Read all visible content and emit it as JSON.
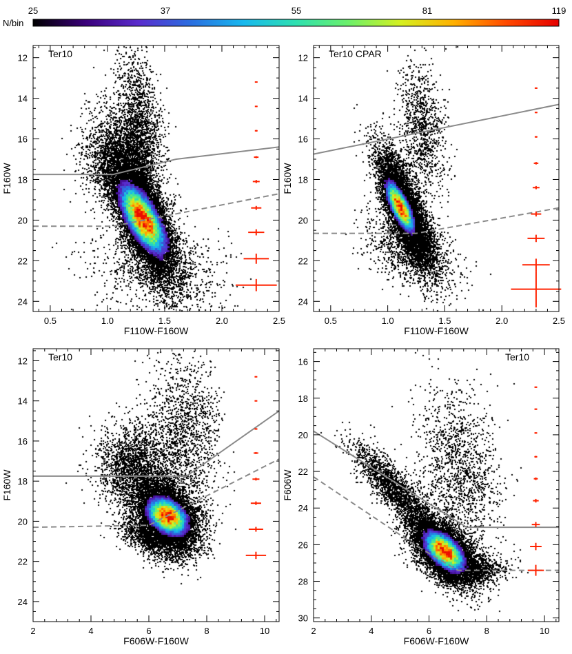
{
  "colorbar": {
    "label": "N/bin",
    "ticks": [
      "25",
      "37",
      "55",
      "81",
      "119"
    ],
    "stops": [
      "#000000",
      "#3a007a",
      "#5a2ccd",
      "#2a6ee0",
      "#18b8ee",
      "#2ee0b0",
      "#6cf06a",
      "#d6f020",
      "#ffb000",
      "#ff4a00",
      "#e60000"
    ]
  },
  "colors": {
    "points": "#000000",
    "boundary": "#8a8a8a",
    "errorbars": "#ff2200"
  },
  "chart_data": [
    {
      "type": "scatter",
      "title": "Ter10",
      "xlabel": "F110W-F160W",
      "ylabel": "F160W",
      "xlim": [
        0.35,
        2.5
      ],
      "ylim": [
        24.5,
        11.4
      ],
      "xticks": [
        0.5,
        1.0,
        1.5,
        2.0,
        2.5
      ],
      "xtick_labels": [
        "0.5",
        "1.0",
        "1.5",
        "2.0",
        "2.5"
      ],
      "yticks": [
        12,
        14,
        16,
        18,
        20,
        22,
        24
      ],
      "ytick_labels": [
        "12",
        "14",
        "16",
        "18",
        "20",
        "22",
        "24"
      ],
      "solid_line": [
        [
          0.35,
          17.75
        ],
        [
          1.05,
          17.75
        ],
        [
          1.6,
          17.0
        ],
        [
          2.5,
          16.4
        ]
      ],
      "dashed_line": [
        [
          0.35,
          20.3
        ],
        [
          1.05,
          20.3
        ],
        [
          2.5,
          18.7
        ]
      ],
      "errorbars": {
        "x": 2.3,
        "y": [
          13.2,
          14.4,
          15.6,
          16.9,
          18.1,
          19.4,
          20.6,
          21.9,
          23.2
        ],
        "xerr": [
          0.005,
          0.007,
          0.01,
          0.02,
          0.03,
          0.045,
          0.07,
          0.11,
          0.18
        ],
        "yerr": [
          0.02,
          0.03,
          0.04,
          0.05,
          0.08,
          0.1,
          0.15,
          0.25,
          0.3
        ]
      },
      "density": {
        "peaks": [
          {
            "x": 1.3,
            "y": 19.8,
            "sx": 0.14,
            "sy": 1.5,
            "rho": 0.68,
            "w": 0.75
          },
          {
            "x": 1.28,
            "y": 15.5,
            "sx": 0.1,
            "sy": 2.0,
            "rho": 0.3,
            "w": 0.1
          },
          {
            "x": 1.08,
            "y": 16.8,
            "sx": 0.15,
            "sy": 1.2,
            "rho": 0.0,
            "w": 0.1
          },
          {
            "x": 1.45,
            "y": 22.5,
            "sx": 0.3,
            "sy": 1.0,
            "rho": 0.2,
            "w": 0.05
          }
        ],
        "points": 16000,
        "core": {
          "x": 1.3,
          "y": 19.9,
          "sx": 0.13,
          "sy": 1.1,
          "rho": 0.68
        }
      },
      "yaxis_label_side": "left"
    },
    {
      "type": "scatter",
      "title": "Ter10 CPAR",
      "xlabel": "F110W-F160W",
      "ylabel": "F160W",
      "xlim": [
        0.35,
        2.5
      ],
      "ylim": [
        24.5,
        11.4
      ],
      "xticks": [
        0.5,
        1.0,
        1.5,
        2.0,
        2.5
      ],
      "xtick_labels": [
        "0.5",
        "1.0",
        "1.5",
        "2.0",
        "2.5"
      ],
      "yticks": [
        12,
        14,
        16,
        18,
        20,
        22,
        24
      ],
      "ytick_labels": [
        "12",
        "14",
        "16",
        "18",
        "20",
        "22",
        "24"
      ],
      "solid_line": [
        [
          0.35,
          16.75
        ],
        [
          2.5,
          14.3
        ]
      ],
      "dashed_line": [
        [
          0.35,
          20.65
        ],
        [
          1.25,
          20.65
        ],
        [
          2.5,
          19.4
        ]
      ],
      "errorbars": {
        "x": 2.3,
        "y": [
          13.5,
          14.7,
          15.9,
          17.2,
          18.4,
          19.7,
          20.9,
          22.2,
          23.4
        ],
        "xerr": [
          0.005,
          0.007,
          0.01,
          0.02,
          0.03,
          0.045,
          0.075,
          0.12,
          0.22
        ],
        "yerr": [
          0.02,
          0.03,
          0.04,
          0.06,
          0.08,
          0.12,
          0.18,
          0.3,
          0.9
        ]
      },
      "density": {
        "peaks": [
          {
            "x": 1.15,
            "y": 19.5,
            "sx": 0.12,
            "sy": 1.4,
            "rho": 0.75,
            "w": 0.8
          },
          {
            "x": 1.3,
            "y": 15.5,
            "sx": 0.1,
            "sy": 1.6,
            "rho": 0.3,
            "w": 0.1
          },
          {
            "x": 1.2,
            "y": 21.5,
            "sx": 0.2,
            "sy": 0.9,
            "rho": 0.4,
            "w": 0.1
          }
        ],
        "points": 9500,
        "core": {
          "x": 1.1,
          "y": 19.3,
          "sx": 0.08,
          "sy": 0.8,
          "rho": 0.75
        }
      },
      "yaxis_label_side": "left"
    },
    {
      "type": "scatter",
      "title": "Ter10",
      "xlabel": "F606W-F160W",
      "ylabel": "F160W",
      "xlim": [
        2.0,
        10.5
      ],
      "ylim": [
        25.0,
        11.4
      ],
      "xticks": [
        2,
        4,
        6,
        8,
        10
      ],
      "xtick_labels": [
        "2",
        "4",
        "6",
        "8",
        "10"
      ],
      "yticks": [
        12,
        14,
        16,
        18,
        20,
        22,
        24
      ],
      "ytick_labels": [
        "12",
        "14",
        "16",
        "18",
        "20",
        "22",
        "24"
      ],
      "solid_line": [
        [
          2.0,
          17.75
        ],
        [
          7.3,
          17.75
        ],
        [
          10.5,
          14.5
        ]
      ],
      "dashed_line": [
        [
          2.0,
          20.3
        ],
        [
          6.0,
          20.2
        ],
        [
          10.5,
          16.9
        ]
      ],
      "errorbars": {
        "x": 9.7,
        "y": [
          12.8,
          14.0,
          15.4,
          16.6,
          17.9,
          19.1,
          20.4,
          21.7
        ],
        "xerr": [
          0.02,
          0.03,
          0.05,
          0.08,
          0.12,
          0.18,
          0.25,
          0.35
        ],
        "yerr": [
          0.02,
          0.03,
          0.04,
          0.05,
          0.07,
          0.09,
          0.12,
          0.18
        ]
      },
      "density": {
        "peaks": [
          {
            "x": 6.6,
            "y": 19.7,
            "sx": 0.55,
            "sy": 0.9,
            "rho": 0.35,
            "w": 0.65
          },
          {
            "x": 7.2,
            "y": 15.5,
            "sx": 0.6,
            "sy": 2.0,
            "rho": 0.1,
            "w": 0.12
          },
          {
            "x": 5.4,
            "y": 17.2,
            "sx": 0.6,
            "sy": 1.0,
            "rho": 0.0,
            "w": 0.15
          },
          {
            "x": 6.0,
            "y": 20.8,
            "sx": 0.5,
            "sy": 0.5,
            "rho": 0.5,
            "w": 0.08
          }
        ],
        "points": 12000,
        "core": {
          "x": 6.6,
          "y": 19.7,
          "sx": 0.45,
          "sy": 0.6,
          "rho": 0.35
        }
      },
      "yaxis_label_side": "left"
    },
    {
      "type": "scatter",
      "title": "Ter10",
      "xlabel": "F606W-F160W",
      "ylabel": "F606W",
      "xlim": [
        2.0,
        10.5
      ],
      "ylim": [
        30.2,
        15.3
      ],
      "xticks": [
        2,
        4,
        6,
        8,
        10
      ],
      "xtick_labels": [
        "2",
        "4",
        "6",
        "8",
        "10"
      ],
      "yticks": [
        16,
        18,
        20,
        22,
        24,
        26,
        28,
        30
      ],
      "ytick_labels": [
        "16",
        "18",
        "20",
        "22",
        "24",
        "26",
        "28",
        "30"
      ],
      "solid_line": [
        [
          2.0,
          19.8
        ],
        [
          7.3,
          25.05
        ],
        [
          10.5,
          25.05
        ]
      ],
      "dashed_line": [
        [
          2.0,
          22.3
        ],
        [
          5.6,
          26.1
        ],
        [
          7.0,
          27.4
        ],
        [
          10.5,
          27.4
        ]
      ],
      "errorbars": {
        "x": 9.7,
        "y": [
          17.4,
          18.6,
          19.9,
          21.2,
          22.4,
          23.6,
          24.9,
          26.1,
          27.4
        ],
        "xerr": [
          0.02,
          0.03,
          0.04,
          0.05,
          0.07,
          0.1,
          0.14,
          0.2,
          0.28
        ],
        "yerr": [
          0.02,
          0.03,
          0.04,
          0.05,
          0.07,
          0.1,
          0.14,
          0.2,
          0.3
        ]
      },
      "density": {
        "peaks": [
          {
            "x": 6.5,
            "y": 26.3,
            "sx": 0.55,
            "sy": 0.9,
            "rho": 0.55,
            "w": 0.65
          },
          {
            "x": 4.8,
            "y": 23.0,
            "sx": 0.7,
            "sy": 1.2,
            "rho": 0.85,
            "w": 0.15
          },
          {
            "x": 7.0,
            "y": 22.0,
            "sx": 0.7,
            "sy": 2.2,
            "rho": 0.2,
            "w": 0.12
          },
          {
            "x": 7.5,
            "y": 27.3,
            "sx": 0.6,
            "sy": 0.35,
            "rho": 0.0,
            "w": 0.08
          }
        ],
        "points": 12000,
        "core": {
          "x": 6.5,
          "y": 26.3,
          "sx": 0.45,
          "sy": 0.7,
          "rho": 0.55
        }
      },
      "yaxis_label_side": "left"
    }
  ]
}
